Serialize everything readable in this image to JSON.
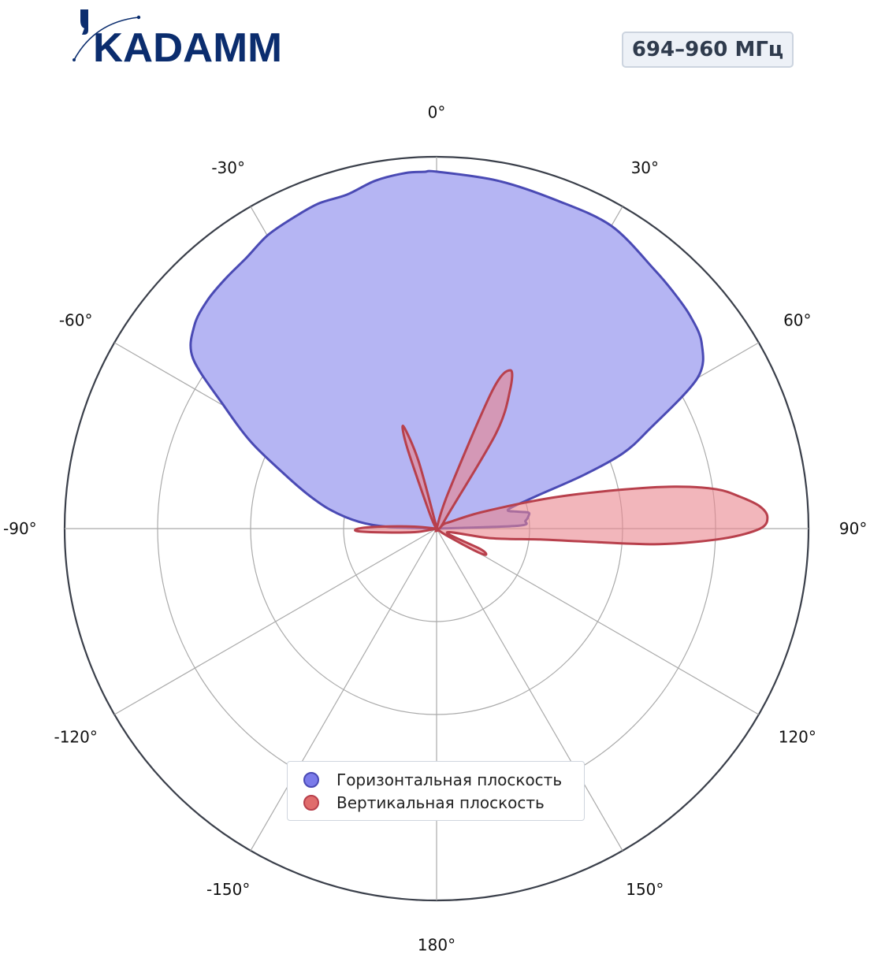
{
  "logo": {
    "text": "KADAMM"
  },
  "badge": {
    "text": "694–960 МГц"
  },
  "colors": {
    "horizontal_fill": "#b5b5f3",
    "horizontal_line": "#4a4ab4",
    "horizontal_marker": "#7b7bea",
    "vertical_fill": "#e9858d",
    "vertical_line": "#b8404c",
    "vertical_marker": "#e06c6c",
    "grid": "#aaaaaa",
    "outer_ring": "#3a3f4a",
    "logo": "#0b2d6e"
  },
  "chart_data": {
    "type": "polar",
    "angular_unit": "degrees",
    "direction": "clockwise",
    "zero_location": "top",
    "radial_range": [
      0,
      1
    ],
    "radial_grid": [
      0.25,
      0.5,
      0.75,
      1.0
    ],
    "radial_tick_labels_shown": false,
    "angular_ticks": [
      0,
      30,
      60,
      90,
      120,
      150,
      180,
      -150,
      -120,
      -90,
      -60,
      -30
    ],
    "angular_tick_labels": [
      "0°",
      "30°",
      "60°",
      "90°",
      "120°",
      "150°",
      "180°",
      "-150°",
      "-120°",
      "-90°",
      "-60°",
      "-30°"
    ],
    "legend_position": "lower center",
    "series": [
      {
        "name": "Горизонтальная плоскость",
        "angles": [
          0,
          10,
          20,
          30,
          40,
          45,
          50,
          55,
          60,
          65,
          68,
          70,
          72,
          75,
          78,
          80,
          82,
          85,
          88,
          90,
          -2,
          -5,
          -10,
          -15,
          -20,
          -25,
          -30,
          -35,
          -40,
          -45,
          -50,
          -55,
          -60,
          -65,
          -70,
          -75,
          -80,
          -85,
          -88,
          -90
        ],
        "values": [
          0.96,
          0.95,
          0.94,
          0.94,
          0.91,
          0.9,
          0.89,
          0.87,
          0.81,
          0.63,
          0.54,
          0.42,
          0.28,
          0.2,
          0.22,
          0.25,
          0.25,
          0.24,
          0.22,
          0.0,
          0.96,
          0.96,
          0.95,
          0.93,
          0.93,
          0.92,
          0.91,
          0.89,
          0.88,
          0.87,
          0.85,
          0.8,
          0.66,
          0.55,
          0.44,
          0.36,
          0.29,
          0.21,
          0.13,
          0.0
        ]
      },
      {
        "name": "Вертикальная плоскость",
        "angles": [
          0,
          10,
          18,
          22,
          25,
          28,
          32,
          45,
          60,
          70,
          75,
          78,
          80,
          82,
          84,
          86,
          88,
          90,
          92,
          94,
          95,
          96,
          100,
          110,
          115,
          118,
          120,
          125,
          130,
          140,
          150,
          180,
          -150,
          -120,
          -100,
          -95,
          -92,
          -90,
          -88,
          -85,
          -80,
          -60,
          -40,
          -30,
          -25,
          -20,
          -18,
          -15,
          -10,
          0
        ],
        "values": [
          0.0,
          0.0,
          0.1,
          0.4,
          0.47,
          0.42,
          0.3,
          0.03,
          0.03,
          0.13,
          0.32,
          0.5,
          0.65,
          0.76,
          0.82,
          0.87,
          0.89,
          0.87,
          0.77,
          0.6,
          0.4,
          0.28,
          0.15,
          0.03,
          0.13,
          0.15,
          0.12,
          0.03,
          0.0,
          0.0,
          0.0,
          0.0,
          0.0,
          0.0,
          0.05,
          0.12,
          0.21,
          0.21,
          0.15,
          0.06,
          0.0,
          0.0,
          0.0,
          0.0,
          0.04,
          0.23,
          0.29,
          0.19,
          0.01,
          0.0
        ]
      }
    ]
  }
}
